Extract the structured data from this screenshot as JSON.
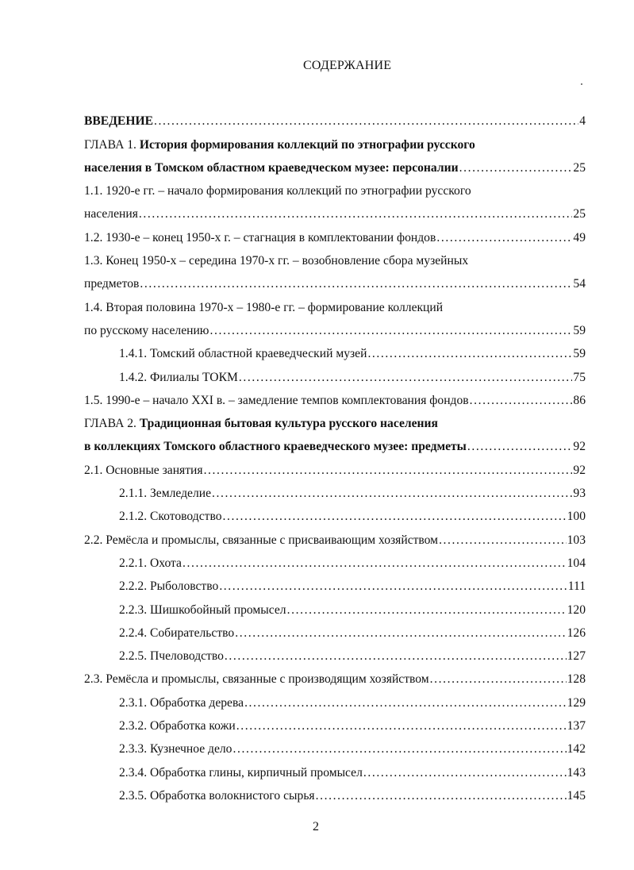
{
  "title": "СОДЕРЖАНИЕ",
  "page_number": "2",
  "toc": [
    {
      "prefix": "",
      "text": "ВВЕДЕНИЕ",
      "bold": true,
      "page": "4",
      "indent": false
    },
    {
      "prefix": "ГЛАВА 1. ",
      "text": "История формирования коллекций по этнографии русского",
      "bold": true,
      "page": "",
      "indent": false
    },
    {
      "prefix": "",
      "text": "населения в Томском областном краеведческом музее: персоналии",
      "bold": true,
      "page": "25",
      "indent": false
    },
    {
      "prefix": "",
      "text": "1.1. 1920-е гг. – начало формирования коллекций по этнографии русского",
      "bold": false,
      "page": "",
      "indent": false
    },
    {
      "prefix": "",
      "text": "населения",
      "bold": false,
      "page": "25",
      "indent": false
    },
    {
      "prefix": "",
      "text": "1.2. 1930-е – конец 1950-х г. – стагнация в комплектовании фондов",
      "bold": false,
      "page": "49",
      "indent": false
    },
    {
      "prefix": "",
      "text": "1.3. Конец 1950-х – середина 1970-х гг. – возобновление сбора музейных",
      "bold": false,
      "page": "",
      "indent": false
    },
    {
      "prefix": "",
      "text": "предметов",
      "bold": false,
      "page": "54",
      "indent": false
    },
    {
      "prefix": "",
      "text": "1.4. Вторая половина 1970-х – 1980-е гг. – формирование коллекций",
      "bold": false,
      "page": "",
      "indent": false
    },
    {
      "prefix": "",
      "text": "по русскому населению",
      "bold": false,
      "page": "59",
      "indent": false
    },
    {
      "prefix": "",
      "text": "1.4.1. Томский областной краеведческий музей",
      "bold": false,
      "page": "59",
      "indent": true
    },
    {
      "prefix": "",
      "text": "1.4.2.  Филиалы ТОКМ",
      "bold": false,
      "page": "75",
      "indent": true
    },
    {
      "prefix": "",
      "text": "1.5. 1990-е – начало XXI в. – замедление темпов комплектования фондов",
      "bold": false,
      "page": "86",
      "indent": false
    },
    {
      "prefix": "ГЛАВА 2. ",
      "text": "Традиционная бытовая культура русского населения",
      "bold": true,
      "page": "",
      "indent": false
    },
    {
      "prefix": "",
      "text": "в коллекциях Томского областного краеведческого музее: предметы",
      "bold": true,
      "page": "92",
      "indent": false
    },
    {
      "prefix": "",
      "text": "2.1. Основные занятия",
      "bold": false,
      "page": "92",
      "indent": false
    },
    {
      "prefix": "",
      "text": "2.1.1. Земледелие",
      "bold": false,
      "page": "93",
      "indent": true
    },
    {
      "prefix": "",
      "text": "2.1.2. Скотоводство",
      "bold": false,
      "page": "100",
      "indent": true
    },
    {
      "prefix": "",
      "text": "2.2. Ремёсла и промыслы, связанные с присваивающим хозяйством",
      "bold": false,
      "page": "103",
      "indent": false
    },
    {
      "prefix": "",
      "text": "2.2.1. Охота",
      "bold": false,
      "page": "104",
      "indent": true
    },
    {
      "prefix": "",
      "text": "2.2.2. Рыболовство",
      "bold": false,
      "page": "111",
      "indent": true
    },
    {
      "prefix": "",
      "text": "2.2.3. Шишкобойный промысел",
      "bold": false,
      "page": "120",
      "indent": true
    },
    {
      "prefix": "",
      "text": "2.2.4. Собирательство",
      "bold": false,
      "page": "126",
      "indent": true
    },
    {
      "prefix": "",
      "text": "2.2.5. Пчеловодство",
      "bold": false,
      "page": "127",
      "indent": true
    },
    {
      "prefix": "",
      "text": "2.3. Ремёсла и промыслы, связанные с производящим хозяйством",
      "bold": false,
      "page": "128",
      "indent": false
    },
    {
      "prefix": "",
      "text": "2.3.1. Обработка дерева",
      "bold": false,
      "page": "129",
      "indent": true
    },
    {
      "prefix": "",
      "text": "2.3.2. Обработка кожи",
      "bold": false,
      "page": "137",
      "indent": true
    },
    {
      "prefix": "",
      "text": "2.3.3. Кузнечное дело",
      "bold": false,
      "page": "142",
      "indent": true
    },
    {
      "prefix": "",
      "text": "2.3.4. Обработка глины, кирпичный промысел",
      "bold": false,
      "page": "143",
      "indent": true
    },
    {
      "prefix": "",
      "text": "2.3.5. Обработка волокнистого сырья",
      "bold": false,
      "page": "145",
      "indent": true
    }
  ]
}
